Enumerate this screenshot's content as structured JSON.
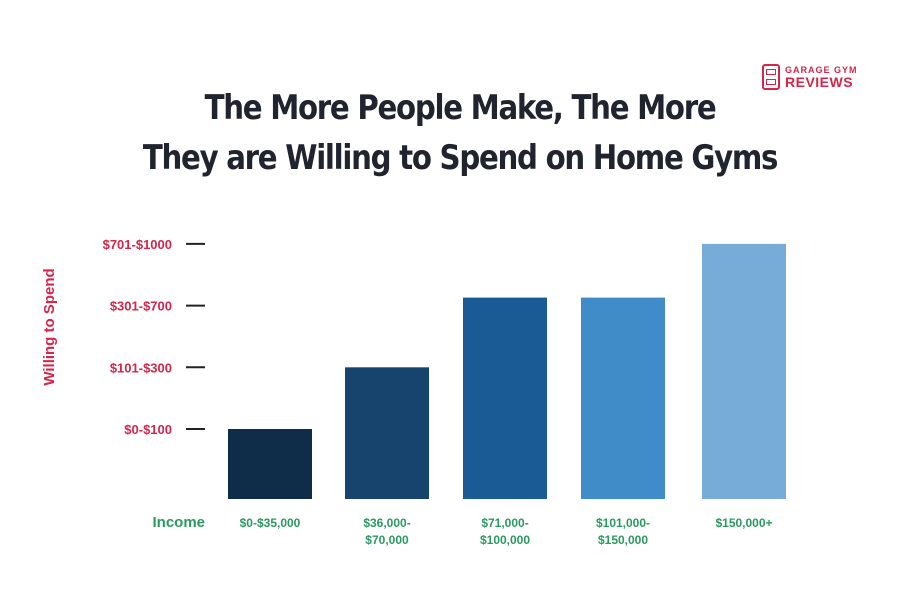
{
  "logo": {
    "line1": "GARAGE GYM",
    "line2": "REVIEWS",
    "color": "#d4264a"
  },
  "chart_data": {
    "type": "bar",
    "title": [
      "The More People Make, The More",
      "They are Willing to Spend on Home Gyms"
    ],
    "xlabel": "Income",
    "ylabel": "Willing to Spend",
    "y_categories": [
      "$0-$100",
      "$101-$300",
      "$301-$700",
      "$701-$1000"
    ],
    "categories": [
      [
        "$0-$35,000"
      ],
      [
        "$36,000-",
        "$70,000"
      ],
      [
        "$71,000-",
        "$100,000"
      ],
      [
        "$101,000-",
        "$150,000"
      ],
      [
        "$150,000+"
      ]
    ],
    "values": [
      "$0-$100",
      "$101-$300",
      "$301-$700",
      "$301-$700",
      "$701-$1000"
    ],
    "bar_colors": [
      "#0f2c48",
      "#16446d",
      "#1b5b95",
      "#3f8cc9",
      "#78acd8"
    ],
    "ylabel_color": "#d4264a",
    "xlabel_color": "#2a9a60",
    "grid": false,
    "legend": "none"
  }
}
